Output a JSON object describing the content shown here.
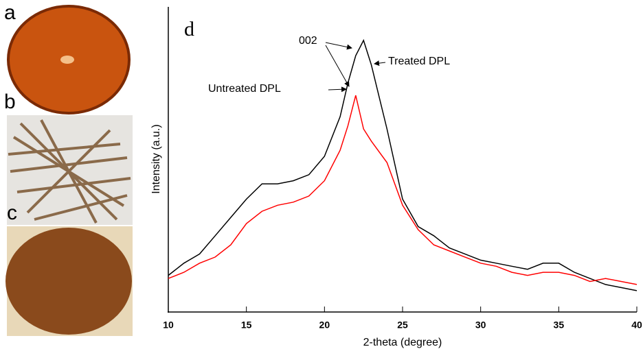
{
  "photo_labels": [
    "a",
    "b",
    "c"
  ],
  "chart_data": {
    "type": "line",
    "panel_label": "d",
    "x_label": "2-theta (degree)",
    "y_label": "Intensity (a.u.)",
    "annotations": [
      "002"
    ],
    "x": [
      10,
      11,
      12,
      13,
      14,
      15,
      16,
      17,
      18,
      19,
      20,
      21,
      21.5,
      22,
      22.5,
      23,
      24,
      25,
      26,
      27,
      28,
      29,
      30,
      31,
      32,
      33,
      34,
      35,
      36,
      37,
      38,
      39,
      40
    ],
    "series": [
      {
        "name": "Treated DPL",
        "color": "#000000",
        "values": [
          12,
          16,
          19,
          25,
          31,
          37,
          42,
          42,
          43,
          45,
          51,
          64,
          75,
          84,
          89,
          81,
          60,
          37,
          28,
          25,
          21,
          19,
          17,
          16,
          15,
          14,
          16,
          16,
          13,
          11,
          9,
          8,
          7
        ]
      },
      {
        "name": "Untreated DPL",
        "color": "#ff0000",
        "values": [
          11,
          13,
          16,
          18,
          22,
          29,
          33,
          35,
          36,
          38,
          43,
          53,
          61,
          71,
          60,
          56,
          49,
          35,
          27,
          22,
          20,
          18,
          16,
          15,
          13,
          12,
          13,
          13,
          12,
          10,
          11,
          10,
          9
        ]
      }
    ],
    "xlim": [
      10,
      40
    ],
    "xticks": [
      10,
      15,
      20,
      25,
      30,
      35,
      40
    ],
    "ylim": [
      0,
      100
    ]
  }
}
